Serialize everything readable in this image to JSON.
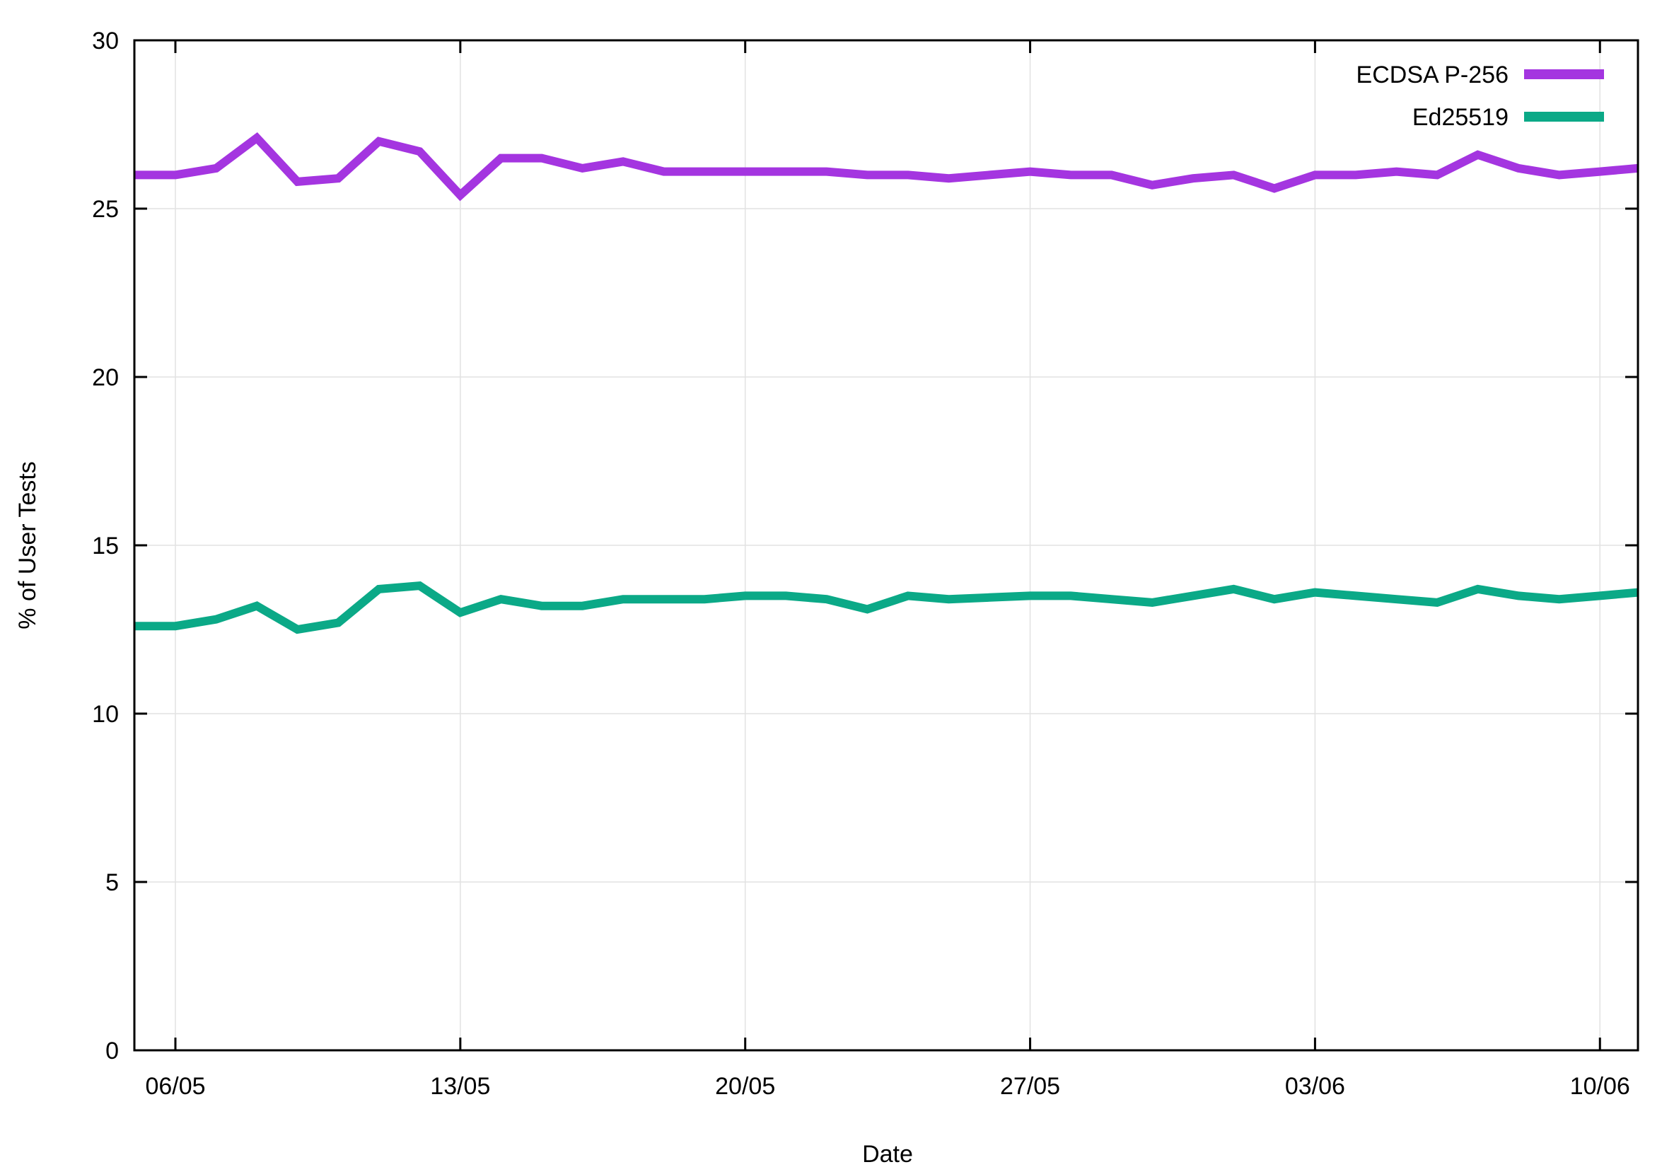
{
  "chart_data": {
    "type": "line",
    "title": "",
    "xlabel": "Date",
    "ylabel": "% of User Tests",
    "ylim": [
      0,
      30
    ],
    "yticks": [
      0,
      5,
      10,
      15,
      20,
      25,
      30
    ],
    "x": [
      "05/05",
      "06/05",
      "07/05",
      "08/05",
      "09/05",
      "10/05",
      "11/05",
      "12/05",
      "13/05",
      "14/05",
      "15/05",
      "16/05",
      "17/05",
      "18/05",
      "19/05",
      "20/05",
      "21/05",
      "22/05",
      "23/05",
      "24/05",
      "25/05",
      "26/05",
      "27/05",
      "28/05",
      "29/05",
      "30/05",
      "31/05",
      "01/06",
      "02/06",
      "03/06",
      "04/06",
      "05/06",
      "06/06",
      "07/06",
      "08/06",
      "09/06",
      "10/06",
      "11/06"
    ],
    "xlim": [
      "05/05",
      "11/06"
    ],
    "xticks": [
      "06/05",
      "13/05",
      "20/05",
      "27/05",
      "03/06",
      "10/06"
    ],
    "grid": true,
    "legend_position": "top-right",
    "series": [
      {
        "name": "ECDSA P-256",
        "color": "#a435e0",
        "values": [
          26.0,
          26.0,
          26.2,
          27.1,
          25.8,
          25.9,
          27.0,
          26.7,
          25.4,
          26.5,
          26.5,
          26.2,
          26.4,
          26.1,
          26.1,
          26.1,
          26.1,
          26.1,
          26.0,
          26.0,
          25.9,
          26.0,
          26.1,
          26.0,
          26.0,
          25.7,
          25.9,
          26.0,
          25.6,
          26.0,
          26.0,
          26.1,
          26.0,
          26.6,
          26.2,
          26.0,
          26.1,
          26.2
        ]
      },
      {
        "name": "Ed25519",
        "color": "#0ba987",
        "values": [
          12.6,
          12.6,
          12.8,
          13.2,
          12.5,
          12.7,
          13.7,
          13.8,
          13.0,
          13.4,
          13.2,
          13.2,
          13.4,
          13.4,
          13.4,
          13.5,
          13.5,
          13.4,
          13.1,
          13.5,
          13.4,
          13.45,
          13.5,
          13.5,
          13.4,
          13.3,
          13.5,
          13.7,
          13.4,
          13.6,
          13.5,
          13.4,
          13.3,
          13.7,
          13.5,
          13.4,
          13.5,
          13.6
        ]
      }
    ]
  }
}
